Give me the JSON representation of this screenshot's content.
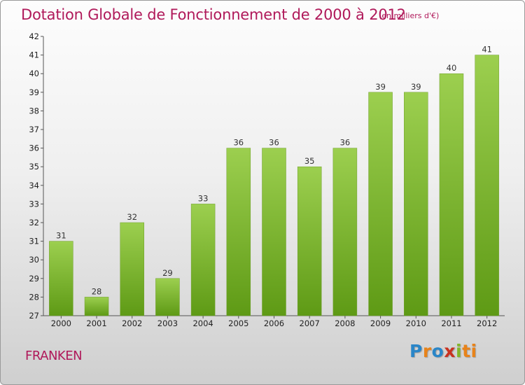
{
  "title": "Dotation Globale de Fonctionnement de 2000 à 2012",
  "subtitle": "(en milliers d'€)",
  "town": "FRANKEN",
  "logo": {
    "l1": "P",
    "l2": "r",
    "l3": "o",
    "l4": "x",
    "l5": "i",
    "l6": "ti"
  },
  "colors": {
    "bar_top": "#9ccf4f",
    "bar_bottom": "#5e9a15",
    "title": "#b0195a"
  },
  "chart_data": {
    "type": "bar",
    "categories": [
      "2000",
      "2001",
      "2002",
      "2003",
      "2004",
      "2005",
      "2006",
      "2007",
      "2008",
      "2009",
      "2010",
      "2011",
      "2012"
    ],
    "values": [
      31,
      28,
      32,
      29,
      33,
      36,
      36,
      35,
      36,
      39,
      39,
      40,
      41
    ],
    "ylim": [
      27,
      42
    ],
    "yticks": [
      27,
      28,
      29,
      30,
      31,
      32,
      33,
      34,
      35,
      36,
      37,
      38,
      39,
      40,
      41,
      42
    ],
    "grid": false,
    "title": "Dotation Globale de Fonctionnement de 2000 à 2012",
    "subtitle": "(en milliers d'€)"
  }
}
